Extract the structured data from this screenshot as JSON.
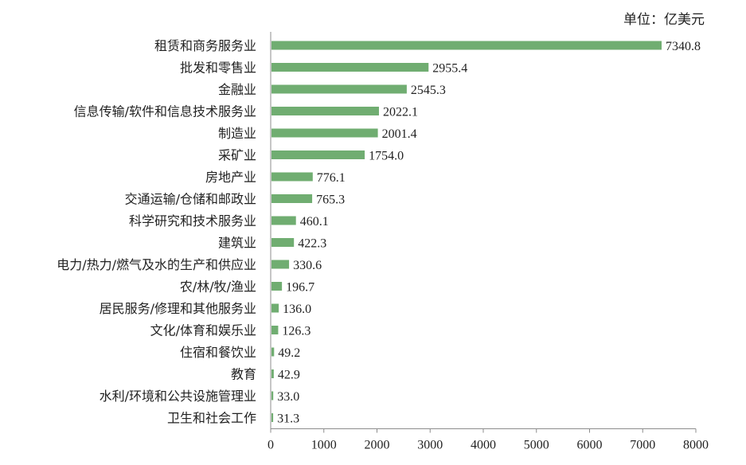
{
  "chart_data": {
    "type": "bar",
    "orientation": "horizontal",
    "unit_label": "单位：亿美元",
    "categories": [
      "租赁和商务服务业",
      "批发和零售业",
      "金融业",
      "信息传输/软件和信息技术服务业",
      "制造业",
      "采矿业",
      "房地产业",
      "交通运输/仓储和邮政业",
      "科学研究和技术服务业",
      "建筑业",
      "电力/热力/燃气及水的生产和供应业",
      "农/林/牧/渔业",
      "居民服务/修理和其他服务业",
      "文化/体育和娱乐业",
      "住宿和餐饮业",
      "教育",
      "水利/环境和公共设施管理业",
      "卫生和社会工作"
    ],
    "values": [
      7340.8,
      2955.4,
      2545.3,
      2022.1,
      2001.4,
      1754.0,
      776.1,
      765.3,
      460.1,
      422.3,
      330.6,
      196.7,
      136.0,
      126.3,
      49.2,
      42.9,
      33.0,
      31.3
    ],
    "value_labels": [
      "7340.8",
      "2955.4",
      "2545.3",
      "2022.1",
      "2001.4",
      "1754.0",
      "776.1",
      "765.3",
      "460.1",
      "422.3",
      "330.6",
      "196.7",
      "136.0",
      "126.3",
      "49.2",
      "42.9",
      "33.0",
      "31.3"
    ],
    "xlim": [
      0,
      8000
    ],
    "x_ticks": [
      0,
      1000,
      2000,
      3000,
      4000,
      5000,
      6000,
      7000,
      8000
    ],
    "bar_color": "#70ad71",
    "axis_color": "#8c8c8c",
    "grid": false,
    "legend": "none"
  }
}
